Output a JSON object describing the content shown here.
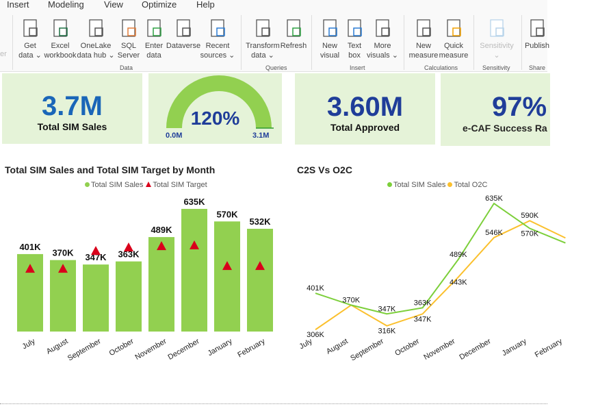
{
  "ribbon": {
    "tabs": [
      "Insert",
      "Modeling",
      "View",
      "Optimize",
      "Help"
    ],
    "buttons": [
      {
        "l1": "Get",
        "l2": "data ⌄",
        "icon": "database-icon"
      },
      {
        "l1": "Excel",
        "l2": "workbook",
        "icon": "excel-icon"
      },
      {
        "l1": "OneLake",
        "l2": "data hub ⌄",
        "icon": "onelake-icon"
      },
      {
        "l1": "SQL",
        "l2": "Server",
        "icon": "sql-server-icon"
      },
      {
        "l1": "Enter",
        "l2": "data",
        "icon": "table-plus-icon"
      },
      {
        "l1": "Dataverse",
        "l2": "",
        "icon": "dataverse-icon"
      },
      {
        "l1": "Recent",
        "l2": "sources ⌄",
        "icon": "recent-sources-icon"
      },
      {
        "l1": "Transform",
        "l2": "data ⌄",
        "icon": "transform-icon"
      },
      {
        "l1": "Refresh",
        "l2": "",
        "icon": "refresh-icon"
      },
      {
        "l1": "New",
        "l2": "visual",
        "icon": "new-visual-icon"
      },
      {
        "l1": "Text",
        "l2": "box",
        "icon": "text-box-icon"
      },
      {
        "l1": "More",
        "l2": "visuals ⌄",
        "icon": "more-visuals-icon"
      },
      {
        "l1": "New",
        "l2": "measure",
        "icon": "calculator-icon"
      },
      {
        "l1": "Quick",
        "l2": "measure",
        "icon": "quick-measure-icon"
      },
      {
        "l1": "Sensitivity",
        "l2": "⌄",
        "icon": "sensitivity-icon"
      },
      {
        "l1": "Publish",
        "l2": "",
        "icon": "publish-icon"
      }
    ],
    "groups": [
      "Data",
      "Queries",
      "Insert",
      "Calculations",
      "Sensitivity",
      "Share"
    ],
    "cut_label": "er"
  },
  "cards": {
    "sales": {
      "value": "3.7M",
      "label": "Total SIM Sales"
    },
    "gauge": {
      "value": "120%",
      "min": "0.0M",
      "max": "3.1M",
      "fill_fraction": 1.0,
      "color": "#92d050"
    },
    "approved": {
      "value": "3.60M",
      "label": "Total Approved"
    },
    "ecaf": {
      "value": "97%",
      "label": "e-CAF Success Ra"
    }
  },
  "chart_data": [
    {
      "type": "bar",
      "title": "Total SIM Sales and Total SIM Target by Month",
      "categories": [
        "July",
        "August",
        "September",
        "October",
        "November",
        "December",
        "January",
        "February"
      ],
      "series": [
        {
          "name": "Total SIM Sales",
          "values": [
            401,
            370,
            347,
            363,
            489,
            635,
            570,
            532
          ],
          "labels": [
            "401K",
            "370K",
            "347K",
            "363K",
            "489K",
            "635K",
            "570K",
            "532K"
          ],
          "color": "#92d050"
        },
        {
          "name": "Total SIM Target",
          "marker": "triangle",
          "values": [
            326,
            326,
            418,
            436,
            443,
            447,
            340,
            340
          ],
          "color": "#d9001b"
        }
      ],
      "unit": "K"
    },
    {
      "type": "line",
      "title": "C2S Vs O2C",
      "categories": [
        "July",
        "August",
        "September",
        "October",
        "November",
        "December",
        "January",
        "February"
      ],
      "series": [
        {
          "name": "Total SIM Sales",
          "values": [
            401,
            370,
            347,
            363,
            489,
            635,
            570,
            532
          ],
          "labels": [
            "401K",
            "370K",
            "347K",
            "363K",
            "489K",
            "635K",
            "570K",
            ""
          ],
          "color": "#7ccf3a"
        },
        {
          "name": "Total O2C",
          "values": [
            306,
            370,
            316,
            347,
            443,
            546,
            590,
            545
          ],
          "labels": [
            "306K",
            "",
            "316K",
            "347K",
            "443K",
            "546K",
            "590K",
            ""
          ],
          "color": "#fbc02d"
        }
      ],
      "unit": "K"
    }
  ]
}
